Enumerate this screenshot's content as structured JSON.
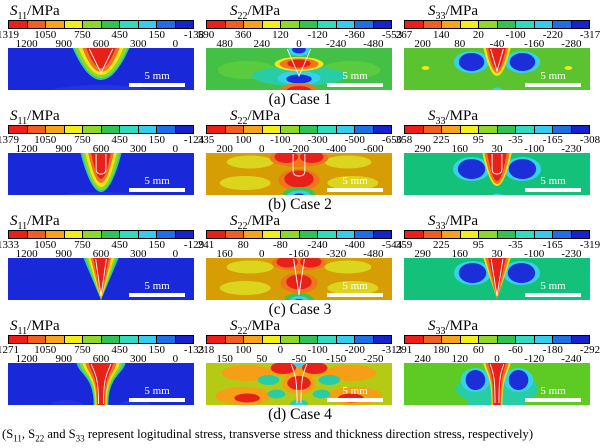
{
  "scale_label": "5 mm",
  "colorbar_colors": [
    "#ee1d17",
    "#f05f1f",
    "#f8a41b",
    "#f4ee17",
    "#8fd827",
    "#30c353",
    "#2fdcc0",
    "#33cdf0",
    "#1e6ee8",
    "#1722cf"
  ],
  "caption": {
    "p1": "(S",
    "s1": "11",
    "p2": ", S",
    "s2": "22",
    "p3": " and S",
    "s3": "33",
    "p4": " represent logitudinal stress, transverse stress and thickness direction stress, respectively)"
  },
  "cases": [
    {
      "label": "(a) Case 1",
      "panels": [
        {
          "name": "S",
          "sub": "11",
          "unit": "/MPa",
          "ticks": [
            "1319",
            "1200",
            "1050",
            "900",
            "750",
            "600",
            "450",
            "300",
            "150",
            "0",
            "-138"
          ],
          "style": "s11_1"
        },
        {
          "name": "S",
          "sub": "22",
          "unit": "/MPa",
          "ticks": [
            "590",
            "480",
            "360",
            "240",
            "120",
            "0",
            "-120",
            "-240",
            "-360",
            "-480",
            "-553"
          ],
          "style": "s22_1"
        },
        {
          "name": "S",
          "sub": "33",
          "unit": "/MPa",
          "ticks": [
            "267",
            "200",
            "140",
            "80",
            "20",
            "-40",
            "-100",
            "-160",
            "-220",
            "-280",
            "-317"
          ],
          "style": "s33_1"
        }
      ]
    },
    {
      "label": "(b) Case 2",
      "panels": [
        {
          "name": "S",
          "sub": "11",
          "unit": "/MPa",
          "ticks": [
            "1379",
            "1200",
            "1050",
            "900",
            "750",
            "600",
            "450",
            "300",
            "150",
            "0",
            "-124"
          ],
          "style": "s11_2"
        },
        {
          "name": "S",
          "sub": "22",
          "unit": "/MPa",
          "ticks": [
            "335",
            "200",
            "100",
            "0",
            "-100",
            "-200",
            "-300",
            "-400",
            "-500",
            "-600",
            "-650"
          ],
          "style": "s22_2"
        },
        {
          "name": "S",
          "sub": "33",
          "unit": "/MPa",
          "ticks": [
            "358",
            "290",
            "225",
            "160",
            "95",
            "30",
            "-35",
            "-100",
            "-165",
            "-230",
            "-308"
          ],
          "style": "s33_2"
        }
      ]
    },
    {
      "label": "(c) Case 3",
      "panels": [
        {
          "name": "S",
          "sub": "11",
          "unit": "/MPa",
          "ticks": [
            "1333",
            "1200",
            "1050",
            "900",
            "750",
            "600",
            "450",
            "300",
            "150",
            "0",
            "-129"
          ],
          "style": "s11_3"
        },
        {
          "name": "S",
          "sub": "22",
          "unit": "/MPa",
          "ticks": [
            "241",
            "160",
            "80",
            "0",
            "-80",
            "-160",
            "-240",
            "-320",
            "-400",
            "-480",
            "-544"
          ],
          "style": "s22_3"
        },
        {
          "name": "S",
          "sub": "33",
          "unit": "/MPa",
          "ticks": [
            "359",
            "290",
            "225",
            "160",
            "95",
            "30",
            "-35",
            "-100",
            "-165",
            "-230",
            "-319"
          ],
          "style": "s33_3"
        }
      ]
    },
    {
      "label": "(d) Case 4",
      "panels": [
        {
          "name": "S",
          "sub": "11",
          "unit": "/MPa",
          "ticks": [
            "1271",
            "1200",
            "1050",
            "900",
            "750",
            "600",
            "450",
            "300",
            "150",
            "0",
            "-133"
          ],
          "style": "s11_4"
        },
        {
          "name": "S",
          "sub": "22",
          "unit": "/MPa",
          "ticks": [
            "218",
            "150",
            "100",
            "50",
            "0",
            "-50",
            "-100",
            "-150",
            "-200",
            "-250",
            "-313"
          ],
          "style": "s22_4"
        },
        {
          "name": "S",
          "sub": "33",
          "unit": "/MPa",
          "ticks": [
            "291",
            "240",
            "180",
            "120",
            "60",
            "0",
            "-60",
            "-120",
            "-180",
            "-240",
            "-292"
          ],
          "style": "s33_4"
        }
      ]
    }
  ],
  "chart_data": [
    {
      "type": "heatmap",
      "case": "Case 1",
      "quantity": "S11",
      "unit": "MPa",
      "max": 1319,
      "min": -138,
      "levels": [
        1319,
        1200,
        1050,
        900,
        750,
        600,
        450,
        300,
        150,
        0,
        -138
      ],
      "pattern": "V-shaped weld tensile core (red) at top center of blue plate, 5 mm scale bar"
    },
    {
      "type": "heatmap",
      "case": "Case 1",
      "quantity": "S22",
      "unit": "MPa",
      "max": 590,
      "min": -553,
      "levels": [
        590,
        480,
        360,
        240,
        120,
        0,
        -120,
        -240,
        -360,
        -480,
        -553
      ],
      "pattern": "green plate; compressive blue lobes at surface and mid-depth under weld, tensile red at bottom center"
    },
    {
      "type": "heatmap",
      "case": "Case 1",
      "quantity": "S33",
      "unit": "MPa",
      "max": 267,
      "min": -317,
      "levels": [
        267,
        200,
        140,
        80,
        20,
        -40,
        -100,
        -160,
        -220,
        -280,
        -317
      ],
      "pattern": "green plate; red tensile V at weld center flanked by blue compressive kidneys"
    },
    {
      "type": "heatmap",
      "case": "Case 2",
      "quantity": "S11",
      "unit": "MPa",
      "max": 1379,
      "min": -124,
      "levels": [
        1379,
        1200,
        1050,
        900,
        750,
        600,
        450,
        300,
        150,
        0,
        -124
      ],
      "pattern": "deep U-shaped red tensile core at top center of blue plate"
    },
    {
      "type": "heatmap",
      "case": "Case 2",
      "quantity": "S22",
      "unit": "MPa",
      "max": 335,
      "min": -650,
      "levels": [
        335,
        200,
        100,
        0,
        -100,
        -200,
        -300,
        -400,
        -500,
        -600,
        -650
      ],
      "pattern": "mustard plate; red tensile lobes at surface and mid-depth, blue compressive blob at bottom center"
    },
    {
      "type": "heatmap",
      "case": "Case 2",
      "quantity": "S33",
      "unit": "MPa",
      "max": 358,
      "min": -308,
      "levels": [
        358,
        290,
        225,
        160,
        95,
        30,
        -35,
        -100,
        -165,
        -230,
        -308
      ],
      "pattern": "emerald plate; red tensile U core flanked by blue compressive kidneys"
    },
    {
      "type": "heatmap",
      "case": "Case 3",
      "quantity": "S11",
      "unit": "MPa",
      "max": 1333,
      "min": -129,
      "levels": [
        1333,
        1200,
        1050,
        900,
        750,
        600,
        450,
        300,
        150,
        0,
        -129
      ],
      "pattern": "full-penetration narrow red wedge in blue plate"
    },
    {
      "type": "heatmap",
      "case": "Case 3",
      "quantity": "S22",
      "unit": "MPa",
      "max": 241,
      "min": -544,
      "levels": [
        241,
        160,
        80,
        0,
        -80,
        -160,
        -240,
        -320,
        -400,
        -480,
        -544
      ],
      "pattern": "mustard plate; red lobes top and middle along deep V weld, blue at bottom center"
    },
    {
      "type": "heatmap",
      "case": "Case 3",
      "quantity": "S33",
      "unit": "MPa",
      "max": 359,
      "min": -319,
      "levels": [
        359,
        290,
        225,
        160,
        95,
        30,
        -35,
        -100,
        -165,
        -230,
        -319
      ],
      "pattern": "emerald plate; full-depth red wedge flanked by blue kidneys"
    },
    {
      "type": "heatmap",
      "case": "Case 4",
      "quantity": "S11",
      "unit": "MPa",
      "max": 1271,
      "min": -133,
      "levels": [
        1271,
        1200,
        1050,
        900,
        750,
        600,
        450,
        300,
        150,
        0,
        -133
      ],
      "pattern": "funnel-shaped red tensile zone with stem to bottom in blue plate"
    },
    {
      "type": "heatmap",
      "case": "Case 4",
      "quantity": "S22",
      "unit": "MPa",
      "max": 218,
      "min": -313,
      "levels": [
        218,
        150,
        100,
        50,
        0,
        -50,
        -100,
        -150,
        -200,
        -250,
        -313
      ],
      "pattern": "olive plate; orange/red side lobes and central red heart, teal patches, cyan at stem top and bottom"
    },
    {
      "type": "heatmap",
      "case": "Case 4",
      "quantity": "S33",
      "unit": "MPa",
      "max": 291,
      "min": -292,
      "levels": [
        291,
        240,
        180,
        120,
        60,
        0,
        -60,
        -120,
        -180,
        -240,
        -292
      ],
      "pattern": "light green plate; red funnel core, blue kidneys, teal surround"
    }
  ]
}
